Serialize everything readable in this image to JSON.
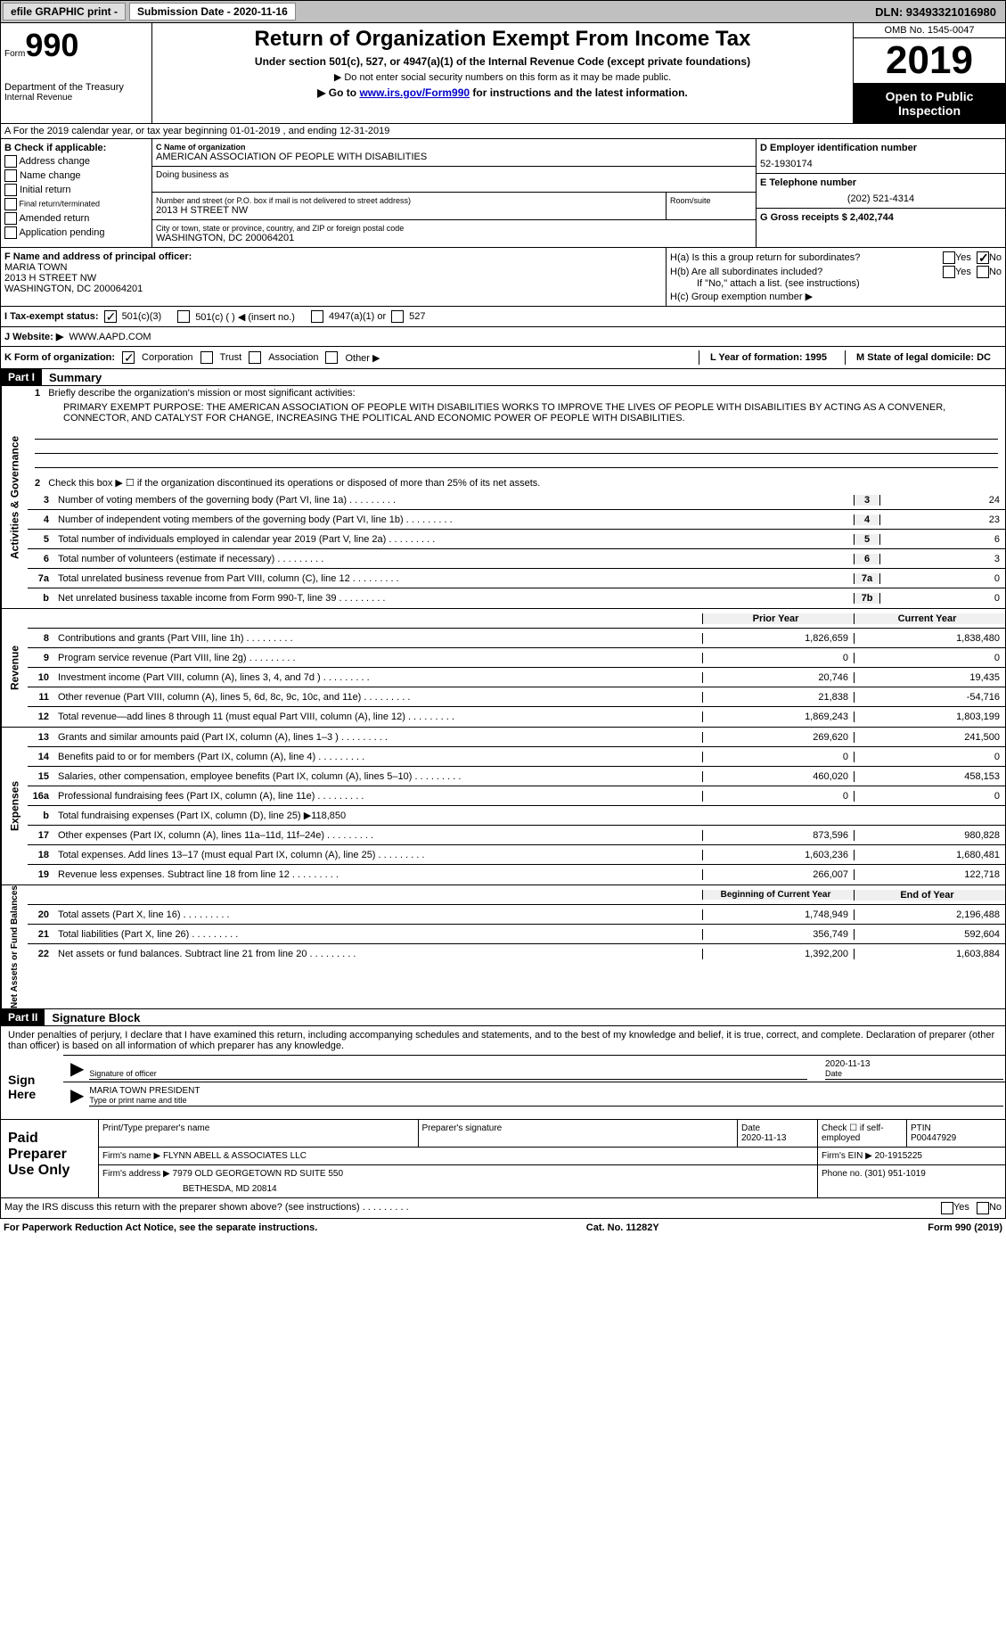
{
  "top": {
    "efile": "efile GRAPHIC print -",
    "submission": "Submission Date - 2020-11-16",
    "dln": "DLN: 93493321016980"
  },
  "header": {
    "form_label": "Form",
    "form_num": "990",
    "dept": "Department of the Treasury",
    "irs": "Internal Revenue",
    "title": "Return of Organization Exempt From Income Tax",
    "subtitle": "Under section 501(c), 527, or 4947(a)(1) of the Internal Revenue Code (except private foundations)",
    "note1": "▶ Do not enter social security numbers on this form as it may be made public.",
    "note2_pre": "▶ Go to ",
    "note2_link": "www.irs.gov/Form990",
    "note2_post": " for instructions and the latest information.",
    "omb": "OMB No. 1545-0047",
    "year": "2019",
    "open": "Open to Public Inspection"
  },
  "secA": "A For the 2019 calendar year, or tax year beginning 01-01-2019   , and ending 12-31-2019",
  "boxB": {
    "label": "B Check if applicable:",
    "addr": "Address change",
    "name": "Name change",
    "init": "Initial return",
    "final": "Final return/terminated",
    "amend": "Amended return",
    "app": "Application pending"
  },
  "boxC": {
    "label": "C Name of organization",
    "name": "AMERICAN ASSOCIATION OF PEOPLE WITH DISABILITIES",
    "dba": "Doing business as",
    "addr_label": "Number and street (or P.O. box if mail is not delivered to street address)",
    "addr": "2013 H STREET NW",
    "room": "Room/suite",
    "city_label": "City or town, state or province, country, and ZIP or foreign postal code",
    "city": "WASHINGTON, DC  200064201"
  },
  "boxD": {
    "label": "D Employer identification number",
    "val": "52-1930174"
  },
  "boxE": {
    "label": "E Telephone number",
    "val": "(202) 521-4314"
  },
  "boxG": {
    "label": "G Gross receipts $ 2,402,744"
  },
  "boxF": {
    "label": "F Name and address of principal officer:",
    "name": "MARIA TOWN",
    "addr1": "2013 H STREET NW",
    "addr2": "WASHINGTON, DC  200064201"
  },
  "boxH": {
    "a": "H(a)  Is this a group return for subordinates?",
    "b": "H(b)  Are all subordinates included?",
    "note": "If \"No,\" attach a list. (see instructions)",
    "c": "H(c)  Group exemption number ▶",
    "yes": "Yes",
    "no": "No"
  },
  "rowI": {
    "label": "I   Tax-exempt status:",
    "o1": "501(c)(3)",
    "o2": "501(c) (  ) ◀ (insert no.)",
    "o3": "4947(a)(1) or",
    "o4": "527"
  },
  "rowJ": {
    "label": "J   Website: ▶",
    "val": "WWW.AAPD.COM"
  },
  "rowK": {
    "label": "K Form of organization:",
    "corp": "Corporation",
    "trust": "Trust",
    "assoc": "Association",
    "other": "Other ▶"
  },
  "rowL": "L Year of formation: 1995",
  "rowM": "M State of legal domicile: DC",
  "part1": {
    "hdr": "Part I",
    "title": "Summary"
  },
  "summary": {
    "q1": "Briefly describe the organization's mission or most significant activities:",
    "mission": "PRIMARY EXEMPT PURPOSE: THE AMERICAN ASSOCIATION OF PEOPLE WITH DISABILITIES WORKS TO IMPROVE THE LIVES OF PEOPLE WITH DISABILITIES BY ACTING AS A CONVENER, CONNECTOR, AND CATALYST FOR CHANGE, INCREASING THE POLITICAL AND ECONOMIC POWER OF PEOPLE WITH DISABILITIES.",
    "q2": "Check this box ▶ ☐  if the organization discontinued its operations or disposed of more than 25% of its net assets.",
    "rows_ag": [
      {
        "n": "3",
        "t": "Number of voting members of the governing body (Part VI, line 1a)",
        "rn": "3",
        "v": "24"
      },
      {
        "n": "4",
        "t": "Number of independent voting members of the governing body (Part VI, line 1b)",
        "rn": "4",
        "v": "23"
      },
      {
        "n": "5",
        "t": "Total number of individuals employed in calendar year 2019 (Part V, line 2a)",
        "rn": "5",
        "v": "6"
      },
      {
        "n": "6",
        "t": "Total number of volunteers (estimate if necessary)",
        "rn": "6",
        "v": "3"
      },
      {
        "n": "7a",
        "t": "Total unrelated business revenue from Part VIII, column (C), line 12",
        "rn": "7a",
        "v": "0"
      },
      {
        "n": "b",
        "t": "Net unrelated business taxable income from Form 990-T, line 39",
        "rn": "7b",
        "v": "0"
      }
    ],
    "col_prior": "Prior Year",
    "col_curr": "Current Year",
    "rows_rev": [
      {
        "n": "8",
        "t": "Contributions and grants (Part VIII, line 1h)",
        "p": "1,826,659",
        "c": "1,838,480"
      },
      {
        "n": "9",
        "t": "Program service revenue (Part VIII, line 2g)",
        "p": "0",
        "c": "0"
      },
      {
        "n": "10",
        "t": "Investment income (Part VIII, column (A), lines 3, 4, and 7d )",
        "p": "20,746",
        "c": "19,435"
      },
      {
        "n": "11",
        "t": "Other revenue (Part VIII, column (A), lines 5, 6d, 8c, 9c, 10c, and 11e)",
        "p": "21,838",
        "c": "-54,716"
      },
      {
        "n": "12",
        "t": "Total revenue—add lines 8 through 11 (must equal Part VIII, column (A), line 12)",
        "p": "1,869,243",
        "c": "1,803,199"
      }
    ],
    "rows_exp": [
      {
        "n": "13",
        "t": "Grants and similar amounts paid (Part IX, column (A), lines 1–3 )",
        "p": "269,620",
        "c": "241,500"
      },
      {
        "n": "14",
        "t": "Benefits paid to or for members (Part IX, column (A), line 4)",
        "p": "0",
        "c": "0"
      },
      {
        "n": "15",
        "t": "Salaries, other compensation, employee benefits (Part IX, column (A), lines 5–10)",
        "p": "460,020",
        "c": "458,153"
      },
      {
        "n": "16a",
        "t": "Professional fundraising fees (Part IX, column (A), line 11e)",
        "p": "0",
        "c": "0"
      },
      {
        "n": "b",
        "t": "Total fundraising expenses (Part IX, column (D), line 25) ▶118,850",
        "p": "",
        "c": "",
        "grey": true
      },
      {
        "n": "17",
        "t": "Other expenses (Part IX, column (A), lines 11a–11d, 11f–24e)",
        "p": "873,596",
        "c": "980,828"
      },
      {
        "n": "18",
        "t": "Total expenses. Add lines 13–17 (must equal Part IX, column (A), line 25)",
        "p": "1,603,236",
        "c": "1,680,481"
      },
      {
        "n": "19",
        "t": "Revenue less expenses. Subtract line 18 from line 12",
        "p": "266,007",
        "c": "122,718"
      }
    ],
    "col_begin": "Beginning of Current Year",
    "col_end": "End of Year",
    "rows_net": [
      {
        "n": "20",
        "t": "Total assets (Part X, line 16)",
        "p": "1,748,949",
        "c": "2,196,488"
      },
      {
        "n": "21",
        "t": "Total liabilities (Part X, line 26)",
        "p": "356,749",
        "c": "592,604"
      },
      {
        "n": "22",
        "t": "Net assets or fund balances. Subtract line 21 from line 20",
        "p": "1,392,200",
        "c": "1,603,884"
      }
    ],
    "side_ag": "Activities & Governance",
    "side_rev": "Revenue",
    "side_exp": "Expenses",
    "side_net": "Net Assets or Fund Balances"
  },
  "part2": {
    "hdr": "Part II",
    "title": "Signature Block"
  },
  "sig": {
    "intro": "Under penalties of perjury, I declare that I have examined this return, including accompanying schedules and statements, and to the best of my knowledge and belief, it is true, correct, and complete. Declaration of preparer (other than officer) is based on all information of which preparer has any knowledge.",
    "sign_here": "Sign Here",
    "sig_off": "Signature of officer",
    "date": "Date",
    "date_val": "2020-11-13",
    "name": "MARIA TOWN  PRESIDENT",
    "name_label": "Type or print name and title"
  },
  "paid": {
    "left": "Paid Preparer Use Only",
    "h1": "Print/Type preparer's name",
    "h2": "Preparer's signature",
    "h3": "Date",
    "h3v": "2020-11-13",
    "h4": "Check ☐ if self-employed",
    "h5": "PTIN",
    "h5v": "P00447929",
    "firm_name_l": "Firm's name    ▶",
    "firm_name": "FLYNN ABELL & ASSOCIATES LLC",
    "firm_ein_l": "Firm's EIN ▶",
    "firm_ein": "20-1915225",
    "firm_addr_l": "Firm's address ▶",
    "firm_addr": "7979 OLD GEORGETOWN RD SUITE 550",
    "firm_city": "BETHESDA, MD  20814",
    "phone_l": "Phone no.",
    "phone": "(301) 951-1019"
  },
  "footer": {
    "discuss": "May the IRS discuss this return with the preparer shown above? (see instructions)",
    "yes": "Yes",
    "no": "No",
    "paperwork": "For Paperwork Reduction Act Notice, see the separate instructions.",
    "cat": "Cat. No. 11282Y",
    "form": "Form 990 (2019)"
  }
}
